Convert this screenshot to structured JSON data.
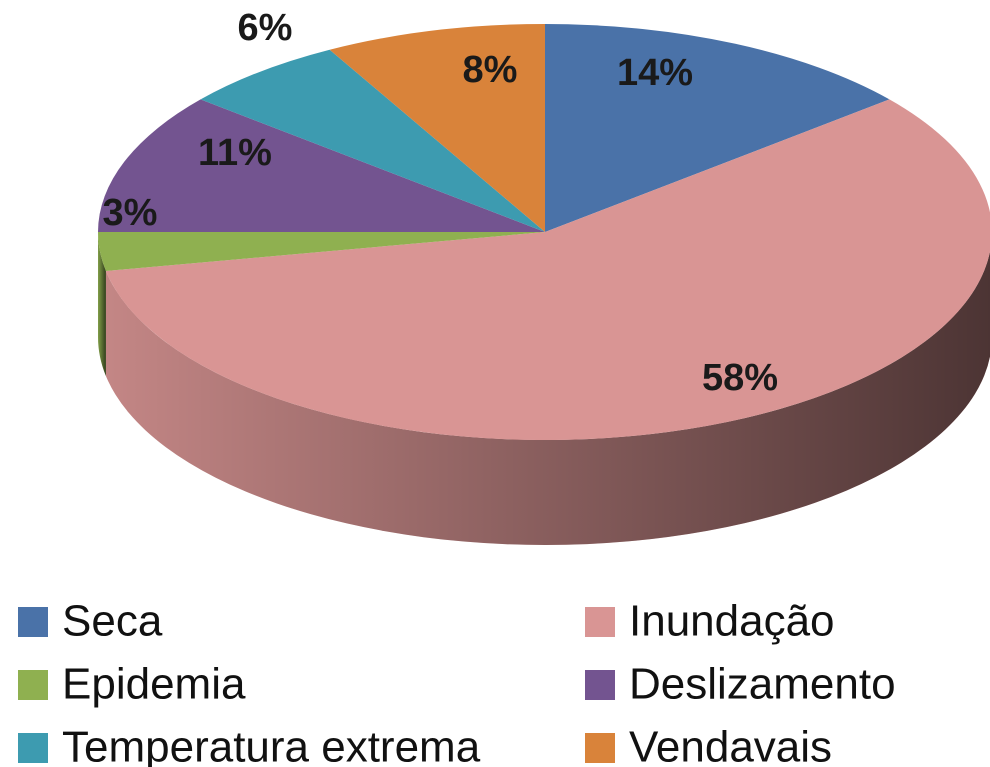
{
  "chart_data": {
    "type": "pie",
    "categories": [
      "Seca",
      "Inundação",
      "Epidemia",
      "Deslizamento",
      "Temperatura extrema",
      "Vendavais"
    ],
    "values": [
      14,
      58,
      3,
      11,
      6,
      8
    ],
    "value_labels": [
      "14%",
      "58%",
      "3%",
      "11%",
      "6%",
      "8%"
    ],
    "colors": [
      "#4a72a8",
      "#d99594",
      "#8fb050",
      "#735490",
      "#3d9bb0",
      "#d9833a"
    ],
    "legend": "bottom"
  }
}
